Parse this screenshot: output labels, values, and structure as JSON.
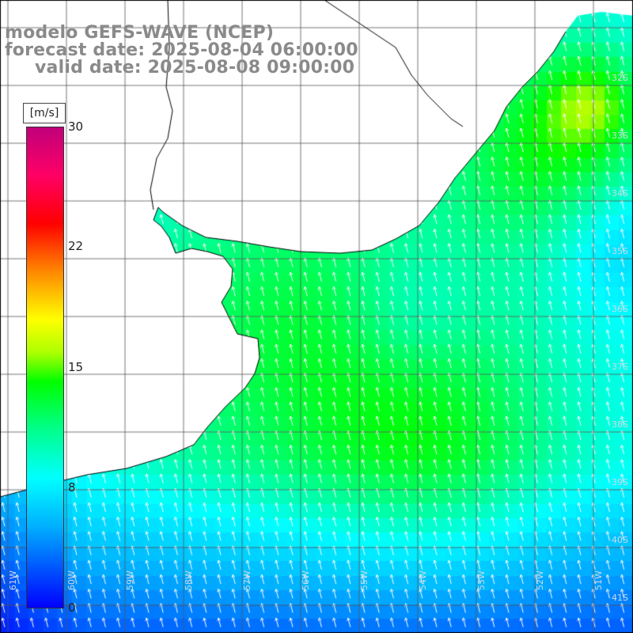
{
  "title": {
    "line1": "modelo GEFS-WAVE (NCEP)",
    "line2": "forecast date: 2025-08-04 06:00:00",
    "line3": "valid date: 2025-08-08 09:00:00"
  },
  "colorbar": {
    "unit": "[m/s]",
    "ticks": [
      "30",
      "22",
      "15",
      "8",
      "0"
    ],
    "range": [
      0,
      30
    ],
    "colors": [
      "#0000ff",
      "#00b0ff",
      "#00ffff",
      "#00ff80",
      "#00ff00",
      "#aaff00",
      "#ffff00",
      "#ff8800",
      "#ff0000",
      "#c0007a"
    ]
  },
  "axes": {
    "lat_labels": [
      "32S",
      "33S",
      "34S",
      "35S",
      "36S",
      "37S",
      "38S",
      "39S",
      "40S",
      "41S"
    ],
    "lon_labels": [
      "61W",
      "60W",
      "59W",
      "58W",
      "57W",
      "56W",
      "55W",
      "54W",
      "53W",
      "52W",
      "51W"
    ]
  },
  "field": {
    "variable": "wind speed with direction arrows",
    "arrow_color": "#ffffff",
    "land_color": "#ffffff",
    "coast_color": "#000000",
    "grid_color": "#555555"
  }
}
